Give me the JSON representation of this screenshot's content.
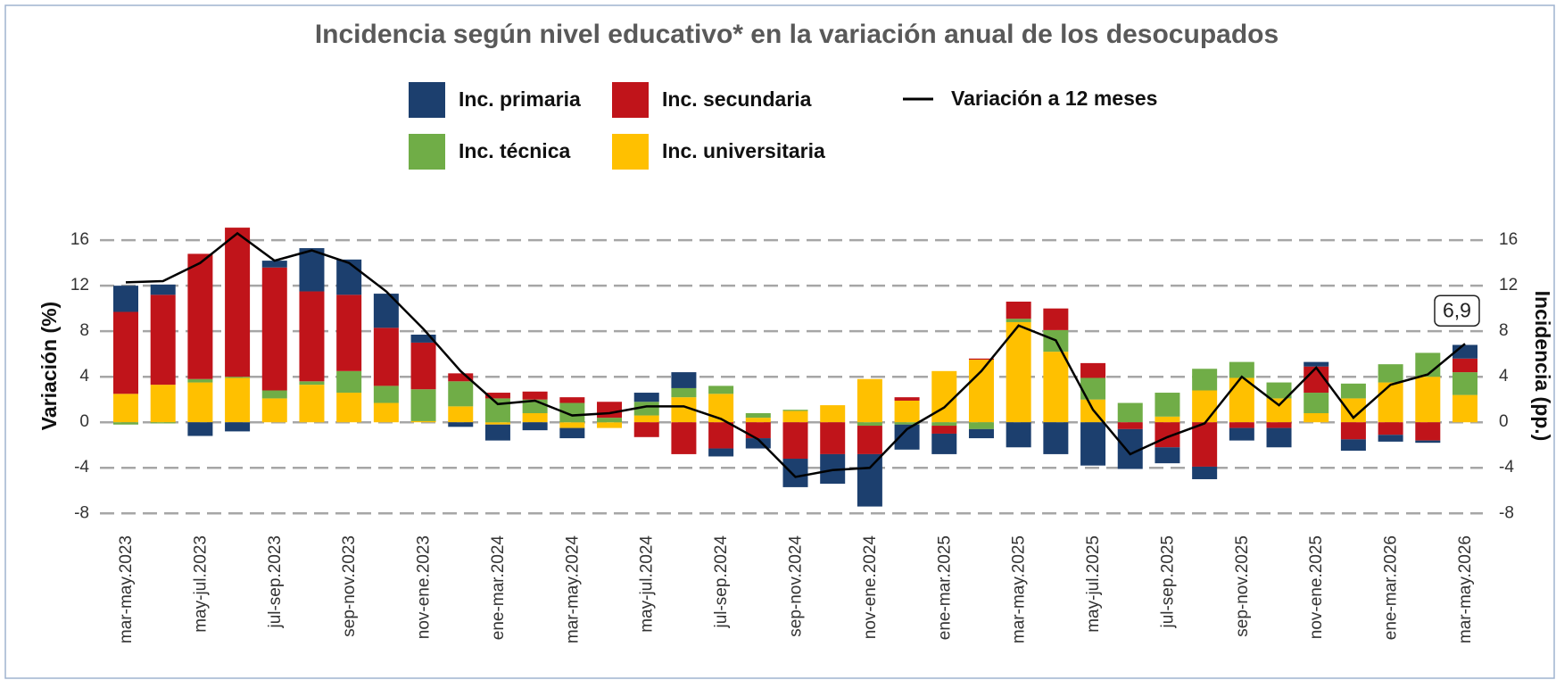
{
  "chart_data": {
    "type": "bar",
    "title": "Incidencia según nivel educativo* en la variación anual de los desocupados",
    "ylabel": "Variación (%)",
    "y2label": "Incidencia (pp.)",
    "annotation": "6,9",
    "categories": [
      "mar-may.2023",
      null,
      "may-jul.2023",
      null,
      "jul-sep.2023",
      null,
      "sep-nov.2023",
      null,
      "nov-ene.2023",
      null,
      "ene-mar.2024",
      null,
      "mar-may.2024",
      null,
      "may-jul.2024",
      null,
      "jul-sep.2024",
      null,
      "sep-nov.2024",
      null,
      "nov-ene.2024",
      null,
      "ene-mar.2025",
      null,
      "mar-may.2025",
      null,
      "may-jul.2025",
      null,
      "jul-sep.2025",
      null,
      "sep-nov.2025",
      null,
      "nov-ene.2025",
      null,
      "ene-mar.2026",
      null,
      "mar-may.2026"
    ],
    "series": [
      {
        "name": "Inc. primaria",
        "color": "#1c3f6e",
        "axis": "y2",
        "values": [
          2.3,
          0.9,
          -1.2,
          -0.8,
          0.6,
          3.8,
          3.1,
          3.0,
          0.7,
          -0.4,
          -1.4,
          -0.7,
          -0.9,
          0,
          0.8,
          1.4,
          -0.7,
          -0.9,
          -2.5,
          -2.6,
          -4.6,
          -2.2,
          -1.8,
          -0.8,
          -2.2,
          -2.8,
          -3.8,
          -3.5,
          -1.4,
          -1.1,
          -1.1,
          -1.7,
          0.4,
          -1.0,
          -0.6,
          -0.2,
          1.2
        ]
      },
      {
        "name": "Inc. secundaria",
        "color": "#c0141a",
        "axis": "y2",
        "values": [
          7.2,
          7.9,
          11.0,
          13.1,
          10.8,
          7.9,
          6.7,
          5.1,
          4.1,
          0.7,
          0.5,
          0.7,
          0.5,
          1.4,
          -1.3,
          -2.8,
          -2.3,
          -1.4,
          -3.2,
          -2.8,
          -2.5,
          0.3,
          -0.7,
          0.1,
          1.5,
          1.9,
          1.3,
          -0.6,
          -2.2,
          -3.9,
          -0.5,
          -0.5,
          2.3,
          -1.5,
          -1.1,
          -1.6,
          1.2
        ]
      },
      {
        "name": "Inc. técnica",
        "color": "#70ad47",
        "axis": "y2",
        "values": [
          -0.2,
          -0.1,
          0.3,
          0.1,
          0.7,
          0.3,
          1.9,
          1.5,
          2.8,
          2.2,
          2.1,
          1.2,
          1.7,
          0.4,
          1.2,
          0.8,
          0.7,
          0.4,
          0.1,
          0,
          -0.3,
          -0.2,
          -0.3,
          -0.6,
          0.3,
          1.9,
          1.9,
          1.7,
          2.1,
          1.9,
          1.4,
          1.4,
          1.8,
          1.3,
          1.6,
          2.1,
          2.0
        ]
      },
      {
        "name": "Inc. universitaria",
        "color": "#ffc000",
        "axis": "y2",
        "values": [
          2.5,
          3.3,
          3.5,
          3.9,
          2.1,
          3.3,
          2.6,
          1.7,
          0.1,
          1.4,
          -0.2,
          0.8,
          -0.5,
          -0.5,
          0.6,
          2.2,
          2.5,
          0.4,
          1.0,
          1.5,
          3.8,
          1.9,
          4.5,
          5.5,
          8.8,
          6.2,
          2.0,
          0,
          0.5,
          2.8,
          3.9,
          2.1,
          0.8,
          2.1,
          3.5,
          4.0,
          2.4
        ]
      },
      {
        "name": "Variación a 12 meses",
        "color": "#000000",
        "type": "line",
        "values": [
          12.3,
          12.4,
          14.0,
          16.6,
          14.2,
          15.1,
          14.0,
          11.5,
          8.2,
          4.5,
          1.6,
          1.9,
          0.6,
          0.8,
          1.4,
          1.4,
          0.3,
          -1.5,
          -4.8,
          -4.2,
          -4.0,
          -0.6,
          1.3,
          4.5,
          8.5,
          7.2,
          1.1,
          -2.8,
          -1.3,
          -0.1,
          4.0,
          1.5,
          4.8,
          0.4,
          3.3,
          4.2,
          6.9
        ]
      }
    ],
    "ylim": [
      -9,
      17.5
    ],
    "yticks": [
      -8,
      -4,
      0,
      4,
      8,
      12,
      16
    ],
    "y2lim": [
      -9,
      17.5
    ],
    "y2ticks": [
      -8,
      -4,
      0,
      4,
      8,
      12,
      16
    ],
    "grid": true
  }
}
